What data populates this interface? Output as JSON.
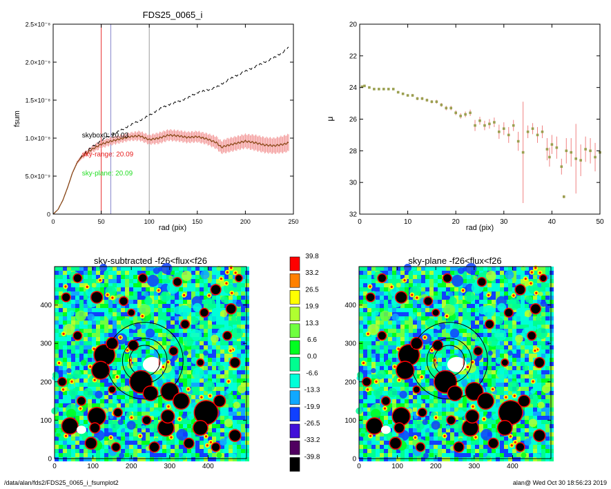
{
  "footer": {
    "path": "/data/alan/fds2/FDS25_0065_i_fsumplot2",
    "user_time": "alan@  Wed Oct 30 18:56:23 2019"
  },
  "chart_data": [
    {
      "id": "fsum",
      "type": "line",
      "title": "FDS25_0065_i",
      "xlabel": "rad (pix)",
      "ylabel": "fsum",
      "xlim": [
        0,
        250
      ],
      "ylim": [
        0,
        2.5e-08
      ],
      "xticks": [
        0,
        50,
        100,
        150,
        200,
        250
      ],
      "xtick_labels": [
        "0",
        "50",
        "100",
        "150",
        "200",
        "250"
      ],
      "yticks": [
        0,
        5e-09,
        1e-08,
        1.5e-08,
        2e-08,
        2.5e-08
      ],
      "ytick_labels": [
        "0",
        "5.0×10⁻⁹",
        "1.0×10⁻⁸",
        "1.5×10⁻⁸",
        "2.0×10⁻⁸",
        "2.5×10⁻⁸"
      ],
      "vlines": [
        {
          "x": 50,
          "color": "#e83030"
        },
        {
          "x": 60,
          "color": "#8888cc"
        },
        {
          "x": 100,
          "color": "#999999"
        }
      ],
      "annotations": [
        {
          "text": "skybox0: 20.03",
          "color": "#000000",
          "x": 30,
          "y": 1.01e-08
        },
        {
          "text": "sky-range: 20.09",
          "color": "#e82020",
          "x": 30,
          "y": 7.6e-09
        },
        {
          "text": "sky-plane: 20.09",
          "color": "#22dd22",
          "x": 30,
          "y": 5.1e-09
        }
      ],
      "series": [
        {
          "style": "dashed",
          "color": "#000000",
          "x": [
            0,
            5,
            10,
            15,
            20,
            25,
            30,
            40,
            50,
            60,
            70,
            80,
            90,
            100,
            110,
            120,
            130,
            140,
            150,
            160,
            170,
            180,
            190,
            200,
            210,
            220,
            230,
            240,
            245
          ],
          "y": [
            0,
            6e-10,
            1.8e-09,
            3.5e-09,
            5.4e-09,
            6.8e-09,
            7.7e-09,
            8.8e-09,
            9.7e-09,
            1.04e-08,
            1.1e-08,
            1.17e-08,
            1.23e-08,
            1.3e-08,
            1.38e-08,
            1.44e-08,
            1.48e-08,
            1.53e-08,
            1.6e-08,
            1.63e-08,
            1.67e-08,
            1.75e-08,
            1.82e-08,
            1.88e-08,
            1.94e-08,
            2e-08,
            2.06e-08,
            2.14e-08,
            2.2e-08
          ]
        },
        {
          "style": "solid",
          "color": "#8b4a1a",
          "error_color": "#f08080",
          "x": [
            0,
            5,
            10,
            15,
            20,
            25,
            30,
            40,
            50,
            60,
            70,
            80,
            90,
            100,
            110,
            120,
            130,
            140,
            150,
            160,
            170,
            175,
            180,
            190,
            200,
            210,
            220,
            230,
            240,
            245
          ],
          "y": [
            0,
            6e-10,
            1.8e-09,
            3.5e-09,
            5.4e-09,
            6.8e-09,
            7.6e-09,
            8.5e-09,
            9.2e-09,
            9.6e-09,
            9.9e-09,
            1.02e-08,
            1.03e-08,
            9.8e-09,
            1e-08,
            1.04e-08,
            1.03e-08,
            1.01e-08,
            1.02e-08,
            9.9e-09,
            9.4e-09,
            8.8e-09,
            9e-09,
            9.3e-09,
            9.6e-09,
            9.4e-09,
            9.1e-09,
            9e-09,
            9.2e-09,
            9.4e-09
          ],
          "err": [
            0,
            0,
            0,
            1e-10,
            1e-10,
            2e-10,
            3e-10,
            4e-10,
            5e-10,
            5e-10,
            5e-10,
            5e-10,
            6e-10,
            6e-10,
            7e-10,
            7e-10,
            7e-10,
            7e-10,
            7e-10,
            7e-10,
            8e-10,
            8e-10,
            9e-10,
            9e-10,
            9e-10,
            1e-09,
            1e-09,
            1e-09,
            1.1e-09,
            1.1e-09
          ]
        }
      ]
    },
    {
      "id": "mu",
      "type": "scatter",
      "title": "",
      "xlabel": "rad (pix)",
      "ylabel": "μ",
      "xlim": [
        0,
        50
      ],
      "ylim": [
        20,
        32
      ],
      "y_inverted": true,
      "xticks": [
        0,
        10,
        20,
        30,
        40,
        50
      ],
      "xtick_labels": [
        "0",
        "10",
        "20",
        "30",
        "40",
        "50"
      ],
      "yticks": [
        20,
        22,
        24,
        26,
        28,
        30,
        32
      ],
      "ytick_labels": [
        "20",
        "22",
        "24",
        "26",
        "28",
        "30",
        "32"
      ],
      "point_color": "#9aa050",
      "error_color": "#f08080",
      "points": [
        {
          "x": 0.5,
          "y": 23.95,
          "err": 0.08
        },
        {
          "x": 1,
          "y": 23.9,
          "err": 0.06
        },
        {
          "x": 2,
          "y": 24.0,
          "err": 0.06
        },
        {
          "x": 3,
          "y": 24.1,
          "err": 0.06
        },
        {
          "x": 4,
          "y": 24.1,
          "err": 0.06
        },
        {
          "x": 5,
          "y": 24.1,
          "err": 0.06
        },
        {
          "x": 6,
          "y": 24.1,
          "err": 0.07
        },
        {
          "x": 7,
          "y": 24.1,
          "err": 0.07
        },
        {
          "x": 8,
          "y": 24.3,
          "err": 0.08
        },
        {
          "x": 9,
          "y": 24.4,
          "err": 0.08
        },
        {
          "x": 10,
          "y": 24.5,
          "err": 0.08
        },
        {
          "x": 11,
          "y": 24.5,
          "err": 0.09
        },
        {
          "x": 12,
          "y": 24.7,
          "err": 0.1
        },
        {
          "x": 13,
          "y": 24.7,
          "err": 0.1
        },
        {
          "x": 14,
          "y": 24.8,
          "err": 0.1
        },
        {
          "x": 15,
          "y": 24.9,
          "err": 0.1
        },
        {
          "x": 16,
          "y": 24.9,
          "err": 0.12
        },
        {
          "x": 17,
          "y": 25.1,
          "err": 0.12
        },
        {
          "x": 18,
          "y": 25.3,
          "err": 0.14
        },
        {
          "x": 19,
          "y": 25.3,
          "err": 0.14
        },
        {
          "x": 20,
          "y": 25.6,
          "err": 0.15
        },
        {
          "x": 21,
          "y": 25.8,
          "err": 0.17
        },
        {
          "x": 22,
          "y": 25.7,
          "err": 0.18
        },
        {
          "x": 23,
          "y": 25.6,
          "err": 0.2
        },
        {
          "x": 24,
          "y": 26.4,
          "err": 0.35
        },
        {
          "x": 25,
          "y": 26.1,
          "err": 0.25
        },
        {
          "x": 26,
          "y": 26.4,
          "err": 0.3
        },
        {
          "x": 27,
          "y": 26.3,
          "err": 0.3
        },
        {
          "x": 28,
          "y": 26.2,
          "err": 0.3
        },
        {
          "x": 29,
          "y": 26.8,
          "err": 0.45
        },
        {
          "x": 30,
          "y": 26.6,
          "err": 0.4
        },
        {
          "x": 31,
          "y": 27.0,
          "err": 0.5
        },
        {
          "x": 32,
          "y": 26.4,
          "err": 0.35
        },
        {
          "x": 33,
          "y": 27.4,
          "err": 0.6
        },
        {
          "x": 34,
          "y": 28.1,
          "err": 3.2
        },
        {
          "x": 35,
          "y": 26.8,
          "err": 0.4
        },
        {
          "x": 36,
          "y": 26.6,
          "err": 0.35
        },
        {
          "x": 37,
          "y": 27.0,
          "err": 0.5
        },
        {
          "x": 38,
          "y": 26.8,
          "err": 0.4
        },
        {
          "x": 39,
          "y": 27.9,
          "err": 0.7
        },
        {
          "x": 39.5,
          "y": 28.4,
          "err": 0.6
        },
        {
          "x": 40,
          "y": 27.6,
          "err": 0.6
        },
        {
          "x": 41,
          "y": 27.8,
          "err": 0.7
        },
        {
          "x": 42,
          "y": 29.0,
          "err": 0.5
        },
        {
          "x": 42.5,
          "y": 30.9,
          "err": 0.1
        },
        {
          "x": 43,
          "y": 28.0,
          "err": 0.8
        },
        {
          "x": 44,
          "y": 28.1,
          "err": 0.9
        },
        {
          "x": 45,
          "y": 28.5,
          "err": 2.2
        },
        {
          "x": 46,
          "y": 28.6,
          "err": 1.0
        },
        {
          "x": 47,
          "y": 27.9,
          "err": 0.8
        },
        {
          "x": 48,
          "y": 28.0,
          "err": 0.8
        },
        {
          "x": 49,
          "y": 28.4,
          "err": 0.9
        },
        {
          "x": 50,
          "y": 28.1,
          "err": 0.9
        }
      ]
    },
    {
      "id": "img1",
      "type": "heatmap",
      "title": "sky-subtracted -f26<flux<f26",
      "xlim": [
        0,
        500
      ],
      "ylim": [
        0,
        500
      ],
      "xticks": [
        0,
        100,
        200,
        300,
        400
      ],
      "xtick_labels": [
        "0",
        "100",
        "200",
        "300",
        "400"
      ],
      "yticks": [
        0,
        100,
        200,
        300,
        400
      ],
      "ytick_labels": [
        "0",
        "100",
        "200",
        "300",
        "400"
      ],
      "center": [
        235,
        255
      ],
      "circle_radii": [
        40,
        58,
        100
      ],
      "marker_x": [
        200,
        272
      ]
    },
    {
      "id": "colorbar",
      "type": "table",
      "levels": [
        "39.8",
        "33.2",
        "26.5",
        "19.9",
        "13.3",
        "6.6",
        "0.0",
        "-6.6",
        "-13.3",
        "-19.9",
        "-26.5",
        "-33.2",
        "-39.8"
      ],
      "colors": [
        "#ff0000",
        "#ff8000",
        "#ffff00",
        "#b0ff30",
        "#70ff40",
        "#00ff20",
        "#00ff90",
        "#00ffd8",
        "#10a8ff",
        "#1040ff",
        "#4010d8",
        "#500060",
        "#000000"
      ]
    },
    {
      "id": "img2",
      "type": "heatmap",
      "title": "sky-plane -f26<flux<f26",
      "xlim": [
        0,
        500
      ],
      "ylim": [
        0,
        500
      ],
      "xticks": [
        0,
        100,
        200,
        300,
        400
      ],
      "xtick_labels": [
        "0",
        "100",
        "200",
        "300",
        "400"
      ],
      "yticks": [
        0,
        100,
        200,
        300,
        400
      ],
      "ytick_labels": [
        "0",
        "100",
        "200",
        "300",
        "400"
      ],
      "center": [
        235,
        255
      ],
      "circle_radii": [
        40,
        58,
        100
      ],
      "marker_x": [
        200,
        272
      ]
    }
  ]
}
